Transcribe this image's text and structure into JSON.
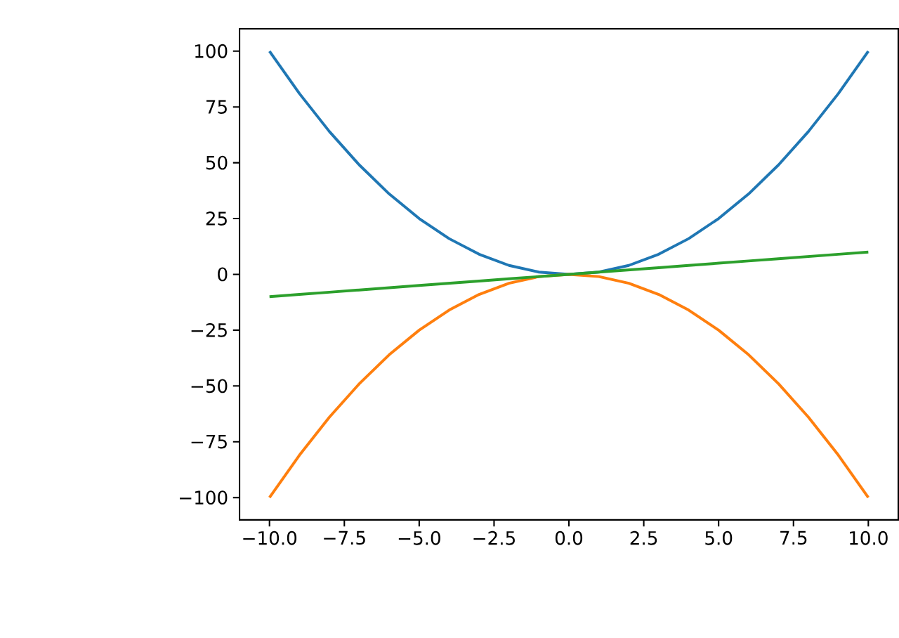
{
  "chart_data": {
    "type": "line",
    "x": [
      -10,
      -9,
      -8,
      -7,
      -6,
      -5,
      -4,
      -3,
      -2,
      -1,
      0,
      1,
      2,
      3,
      4,
      5,
      6,
      7,
      8,
      9,
      10
    ],
    "series": [
      {
        "color": "#1f77b4",
        "values": [
          100,
          81,
          64,
          49,
          36,
          25,
          16,
          9,
          4,
          1,
          0,
          1,
          4,
          9,
          16,
          25,
          36,
          49,
          64,
          81,
          100
        ]
      },
      {
        "color": "#ff7f0e",
        "values": [
          -100,
          -81,
          -64,
          -49,
          -36,
          -25,
          -16,
          -9,
          -4,
          -1,
          0,
          -1,
          -4,
          -9,
          -16,
          -25,
          -36,
          -49,
          -64,
          -81,
          -100
        ]
      },
      {
        "color": "#2ca02c",
        "values": [
          -10,
          -9,
          -8,
          -7,
          -6,
          -5,
          -4,
          -3,
          -2,
          -1,
          0,
          1,
          2,
          3,
          4,
          5,
          6,
          7,
          8,
          9,
          10
        ]
      }
    ],
    "xlim": [
      -11,
      11
    ],
    "ylim": [
      -110,
      110
    ],
    "xticks": [
      {
        "value": -10,
        "label": "−10.0"
      },
      {
        "value": -7.5,
        "label": "−7.5"
      },
      {
        "value": -5,
        "label": "−5.0"
      },
      {
        "value": -2.5,
        "label": "−2.5"
      },
      {
        "value": 0,
        "label": "0.0"
      },
      {
        "value": 2.5,
        "label": "2.5"
      },
      {
        "value": 5,
        "label": "5.0"
      },
      {
        "value": 7.5,
        "label": "7.5"
      },
      {
        "value": 10,
        "label": "10.0"
      }
    ],
    "yticks": [
      {
        "value": -100,
        "label": "−100"
      },
      {
        "value": -75,
        "label": "−75"
      },
      {
        "value": -50,
        "label": "−50"
      },
      {
        "value": -25,
        "label": "−25"
      },
      0,
      25,
      50,
      75,
      100
    ]
  }
}
